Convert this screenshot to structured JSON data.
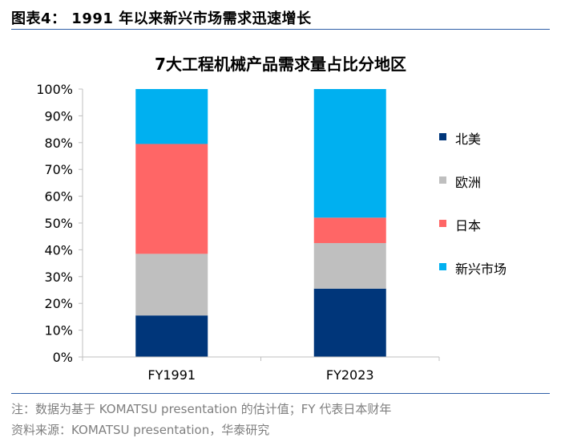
{
  "figure_title": "图表4： 1991 年以来新兴市场需求迅速增长",
  "footer": {
    "note": "注：数据为基于 KOMATSU presentation 的估计值；FY 代表日本财年",
    "source": "资料来源：KOMATSU presentation，华泰研究"
  },
  "chart_data": {
    "type": "bar",
    "stacked": true,
    "title": "7大工程机械产品需求量占比分地区",
    "categories": [
      "FY1991",
      "FY2023"
    ],
    "series": [
      {
        "name": "北美",
        "color": "#00367a",
        "values": [
          15.5,
          25.5
        ]
      },
      {
        "name": "欧洲",
        "color": "#bfbfbf",
        "values": [
          23,
          17
        ]
      },
      {
        "name": "日本",
        "color": "#ff6666",
        "values": [
          41,
          9.5
        ]
      },
      {
        "name": "新兴市场",
        "color": "#00b0f0",
        "values": [
          20.5,
          48
        ]
      }
    ],
    "ylim": [
      0,
      100
    ],
    "yticks": [
      "0%",
      "10%",
      "20%",
      "30%",
      "40%",
      "50%",
      "60%",
      "70%",
      "80%",
      "90%",
      "100%"
    ],
    "grid": false,
    "legend_position": "right"
  }
}
